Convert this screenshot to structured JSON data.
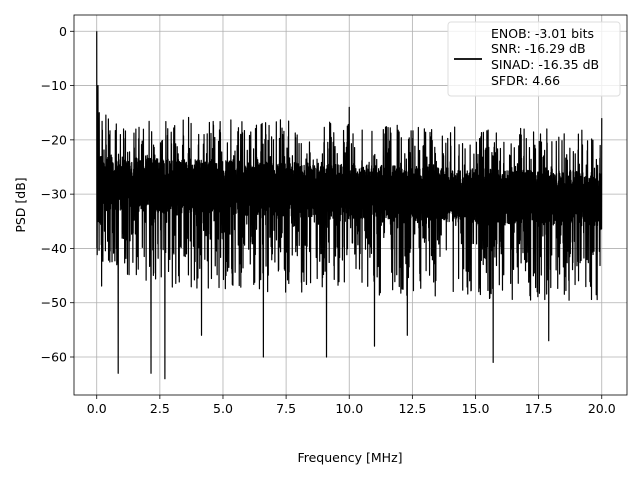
{
  "chart_data": {
    "type": "line",
    "title": "",
    "xlabel": "Frequency [MHz]",
    "ylabel": "PSD [dB]",
    "xlim": [
      -0.9,
      21.0
    ],
    "ylim": [
      -67,
      3
    ],
    "xticks": [
      0.0,
      2.5,
      5.0,
      7.5,
      10.0,
      12.5,
      15.0,
      17.5,
      20.0
    ],
    "xtick_labels": [
      "0.0",
      "2.5",
      "5.0",
      "7.5",
      "10.0",
      "12.5",
      "15.0",
      "17.5",
      "20.0"
    ],
    "yticks": [
      0,
      -10,
      -20,
      -30,
      -40,
      -50,
      -60
    ],
    "ytick_labels": [
      "0",
      "−10",
      "−20",
      "−30",
      "−40",
      "−50",
      "−60"
    ],
    "grid": true,
    "line_color": "#000000",
    "legend": {
      "placement": "top-right",
      "lines": [
        "ENOB: -3.01 bits",
        "SNR: -16.29 dB",
        "SINAD: -16.35 dB",
        "SFDR: 4.66"
      ]
    },
    "series": [
      {
        "x_range": [
          0.0,
          20.0
        ],
        "noise_floor_db": -30,
        "noise_spread_db": [
          -47,
          -15
        ],
        "spikes": [
          {
            "x": 0.0,
            "y": 0
          },
          {
            "x": 0.05,
            "y": -10
          },
          {
            "x": 0.1,
            "y": -15
          },
          {
            "x": 10.0,
            "y": -14
          },
          {
            "x": 20.0,
            "y": -16
          }
        ],
        "dips": [
          {
            "x": 0.85,
            "y": -63
          },
          {
            "x": 2.15,
            "y": -63
          },
          {
            "x": 2.7,
            "y": -64
          },
          {
            "x": 6.6,
            "y": -60
          },
          {
            "x": 9.1,
            "y": -60
          },
          {
            "x": 15.7,
            "y": -61
          },
          {
            "x": 11.0,
            "y": -58
          },
          {
            "x": 4.15,
            "y": -56
          },
          {
            "x": 17.9,
            "y": -57
          },
          {
            "x": 12.3,
            "y": -56
          }
        ]
      }
    ]
  }
}
